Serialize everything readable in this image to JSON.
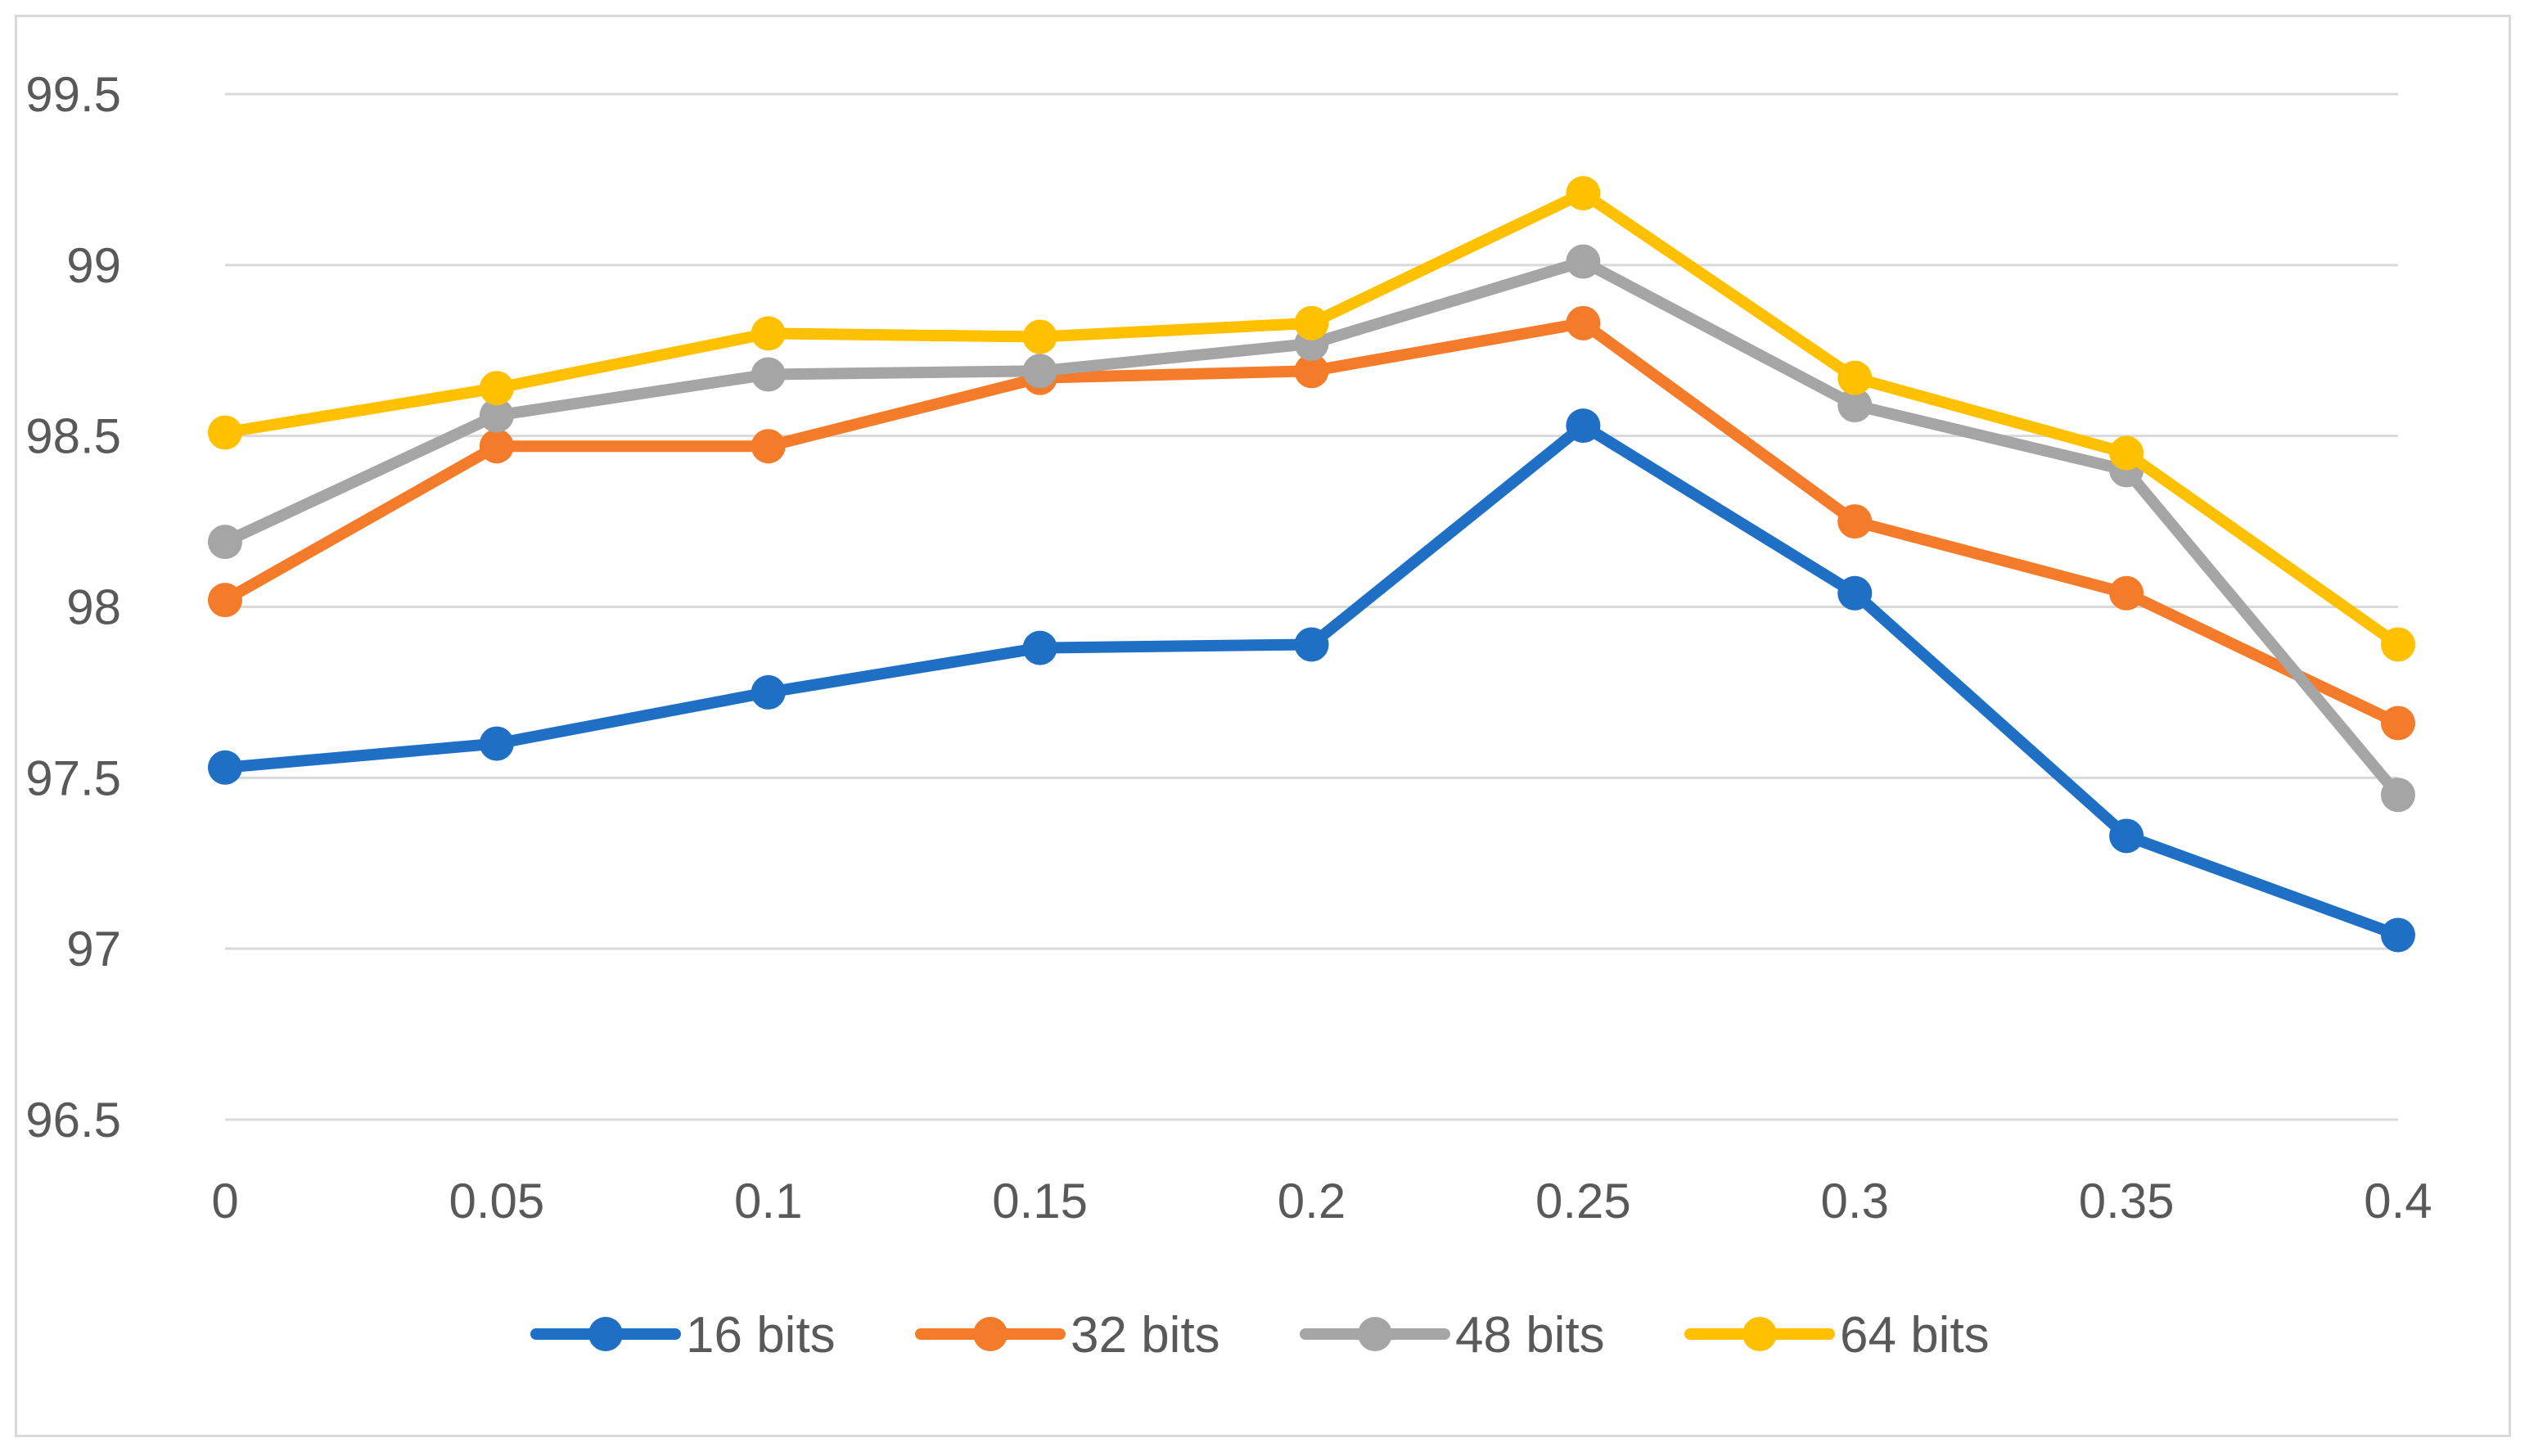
{
  "chart_data": {
    "type": "line",
    "title": "",
    "xlabel": "",
    "ylabel": "",
    "x": [
      "0",
      "0.05",
      "0.1",
      "0.15",
      "0.2",
      "0.25",
      "0.3",
      "0.35",
      "0.4"
    ],
    "ylim": [
      96.5,
      99.5
    ],
    "yticks": [
      "96.5",
      "97",
      "97.5",
      "98",
      "98.5",
      "99",
      "99.5"
    ],
    "grid": true,
    "legend_position": "bottom",
    "series": [
      {
        "name": "16 bits",
        "color": "#1f6fc5",
        "values": [
          97.53,
          97.6,
          97.75,
          97.88,
          97.89,
          98.53,
          98.04,
          97.33,
          97.04
        ]
      },
      {
        "name": "32 bits",
        "color": "#f47b2a",
        "values": [
          98.02,
          98.47,
          98.47,
          98.67,
          98.69,
          98.83,
          98.25,
          98.04,
          97.66
        ]
      },
      {
        "name": "48 bits",
        "color": "#a5a5a5",
        "values": [
          98.19,
          98.56,
          98.68,
          98.69,
          98.77,
          99.01,
          98.59,
          98.4,
          97.45
        ]
      },
      {
        "name": "64 bits",
        "color": "#ffc000",
        "values": [
          98.51,
          98.64,
          98.8,
          98.79,
          98.83,
          99.21,
          98.67,
          98.45,
          97.89
        ]
      }
    ]
  }
}
